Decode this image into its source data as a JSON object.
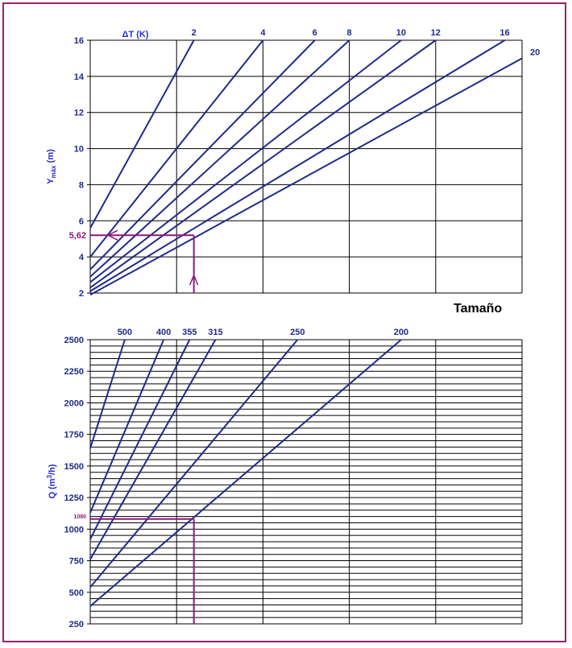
{
  "chart_data": [
    {
      "type": "line",
      "title": "",
      "legend_title": "ΔT (K)",
      "xlabel": "",
      "ylabel_main": "Y",
      "ylabel_sub": "máx",
      "ylabel_unit": " (m)",
      "ylim": [
        2,
        16
      ],
      "yticks": [
        "2",
        "4",
        "6",
        "8",
        "10",
        "12",
        "14",
        "16"
      ],
      "x_axis_labels_shown": false,
      "grid": "vertical and horizontal",
      "series": [
        {
          "name": "2",
          "values": [
            [
              0,
              5.6
            ],
            [
              1.2,
              16
            ]
          ]
        },
        {
          "name": "4",
          "values": [
            [
              0,
              4.0
            ],
            [
              2.0,
              16
            ]
          ]
        },
        {
          "name": "6",
          "values": [
            [
              0,
              3.3
            ],
            [
              2.6,
              16
            ]
          ]
        },
        {
          "name": "8",
          "values": [
            [
              0,
              2.9
            ],
            [
              3.0,
              16
            ]
          ]
        },
        {
          "name": "10",
          "values": [
            [
              0,
              2.6
            ],
            [
              3.6,
              16
            ]
          ]
        },
        {
          "name": "12",
          "values": [
            [
              0,
              2.3
            ],
            [
              4.0,
              16
            ]
          ]
        },
        {
          "name": "16",
          "values": [
            [
              0,
              2.1
            ],
            [
              4.8,
              16
            ]
          ]
        },
        {
          "name": "20",
          "values": [
            [
              0,
              1.9
            ],
            [
              5.0,
              15.0
            ]
          ]
        }
      ],
      "highlight": {
        "value_label": "5,62",
        "y": 5.2,
        "x": 1.2
      },
      "colors": {
        "lines": "#1f2a8a",
        "highlight": "#8b1a7a",
        "ticks": "#1f2a8a",
        "axis_title": "#2b2bd6"
      }
    },
    {
      "type": "line",
      "title": "Tamaño",
      "xlabel": "",
      "ylabel_main": "Q (m",
      "ylabel_sup": "3",
      "ylabel_unit": "/h)",
      "ylim": [
        250,
        2500
      ],
      "yticks": [
        "250",
        "500",
        "750",
        "1000",
        "1250",
        "1500",
        "1750",
        "2000",
        "2250",
        "2500"
      ],
      "x_axis_labels_shown": false,
      "grid": "vertical and horizontal",
      "series": [
        {
          "name": "500",
          "values": [
            [
              0,
              1640
            ],
            [
              0.4,
              2500
            ]
          ]
        },
        {
          "name": "400",
          "values": [
            [
              0,
              1130
            ],
            [
              0.85,
              2500
            ]
          ]
        },
        {
          "name": "355",
          "values": [
            [
              0,
              920
            ],
            [
              1.15,
              2500
            ]
          ]
        },
        {
          "name": "315",
          "values": [
            [
              0,
              760
            ],
            [
              1.45,
              2500
            ]
          ]
        },
        {
          "name": "250",
          "values": [
            [
              0,
              540
            ],
            [
              2.4,
              2500
            ]
          ]
        },
        {
          "name": "200",
          "values": [
            [
              0,
              390
            ],
            [
              3.6,
              2500
            ]
          ]
        }
      ],
      "highlight": {
        "value_label": "1080",
        "y": 1080,
        "x": 1.2
      },
      "colors": {
        "lines": "#1f2a8a",
        "highlight": "#8b1a7a",
        "ticks": "#1f2a8a",
        "axis_title": "#2b2bd6"
      }
    }
  ]
}
